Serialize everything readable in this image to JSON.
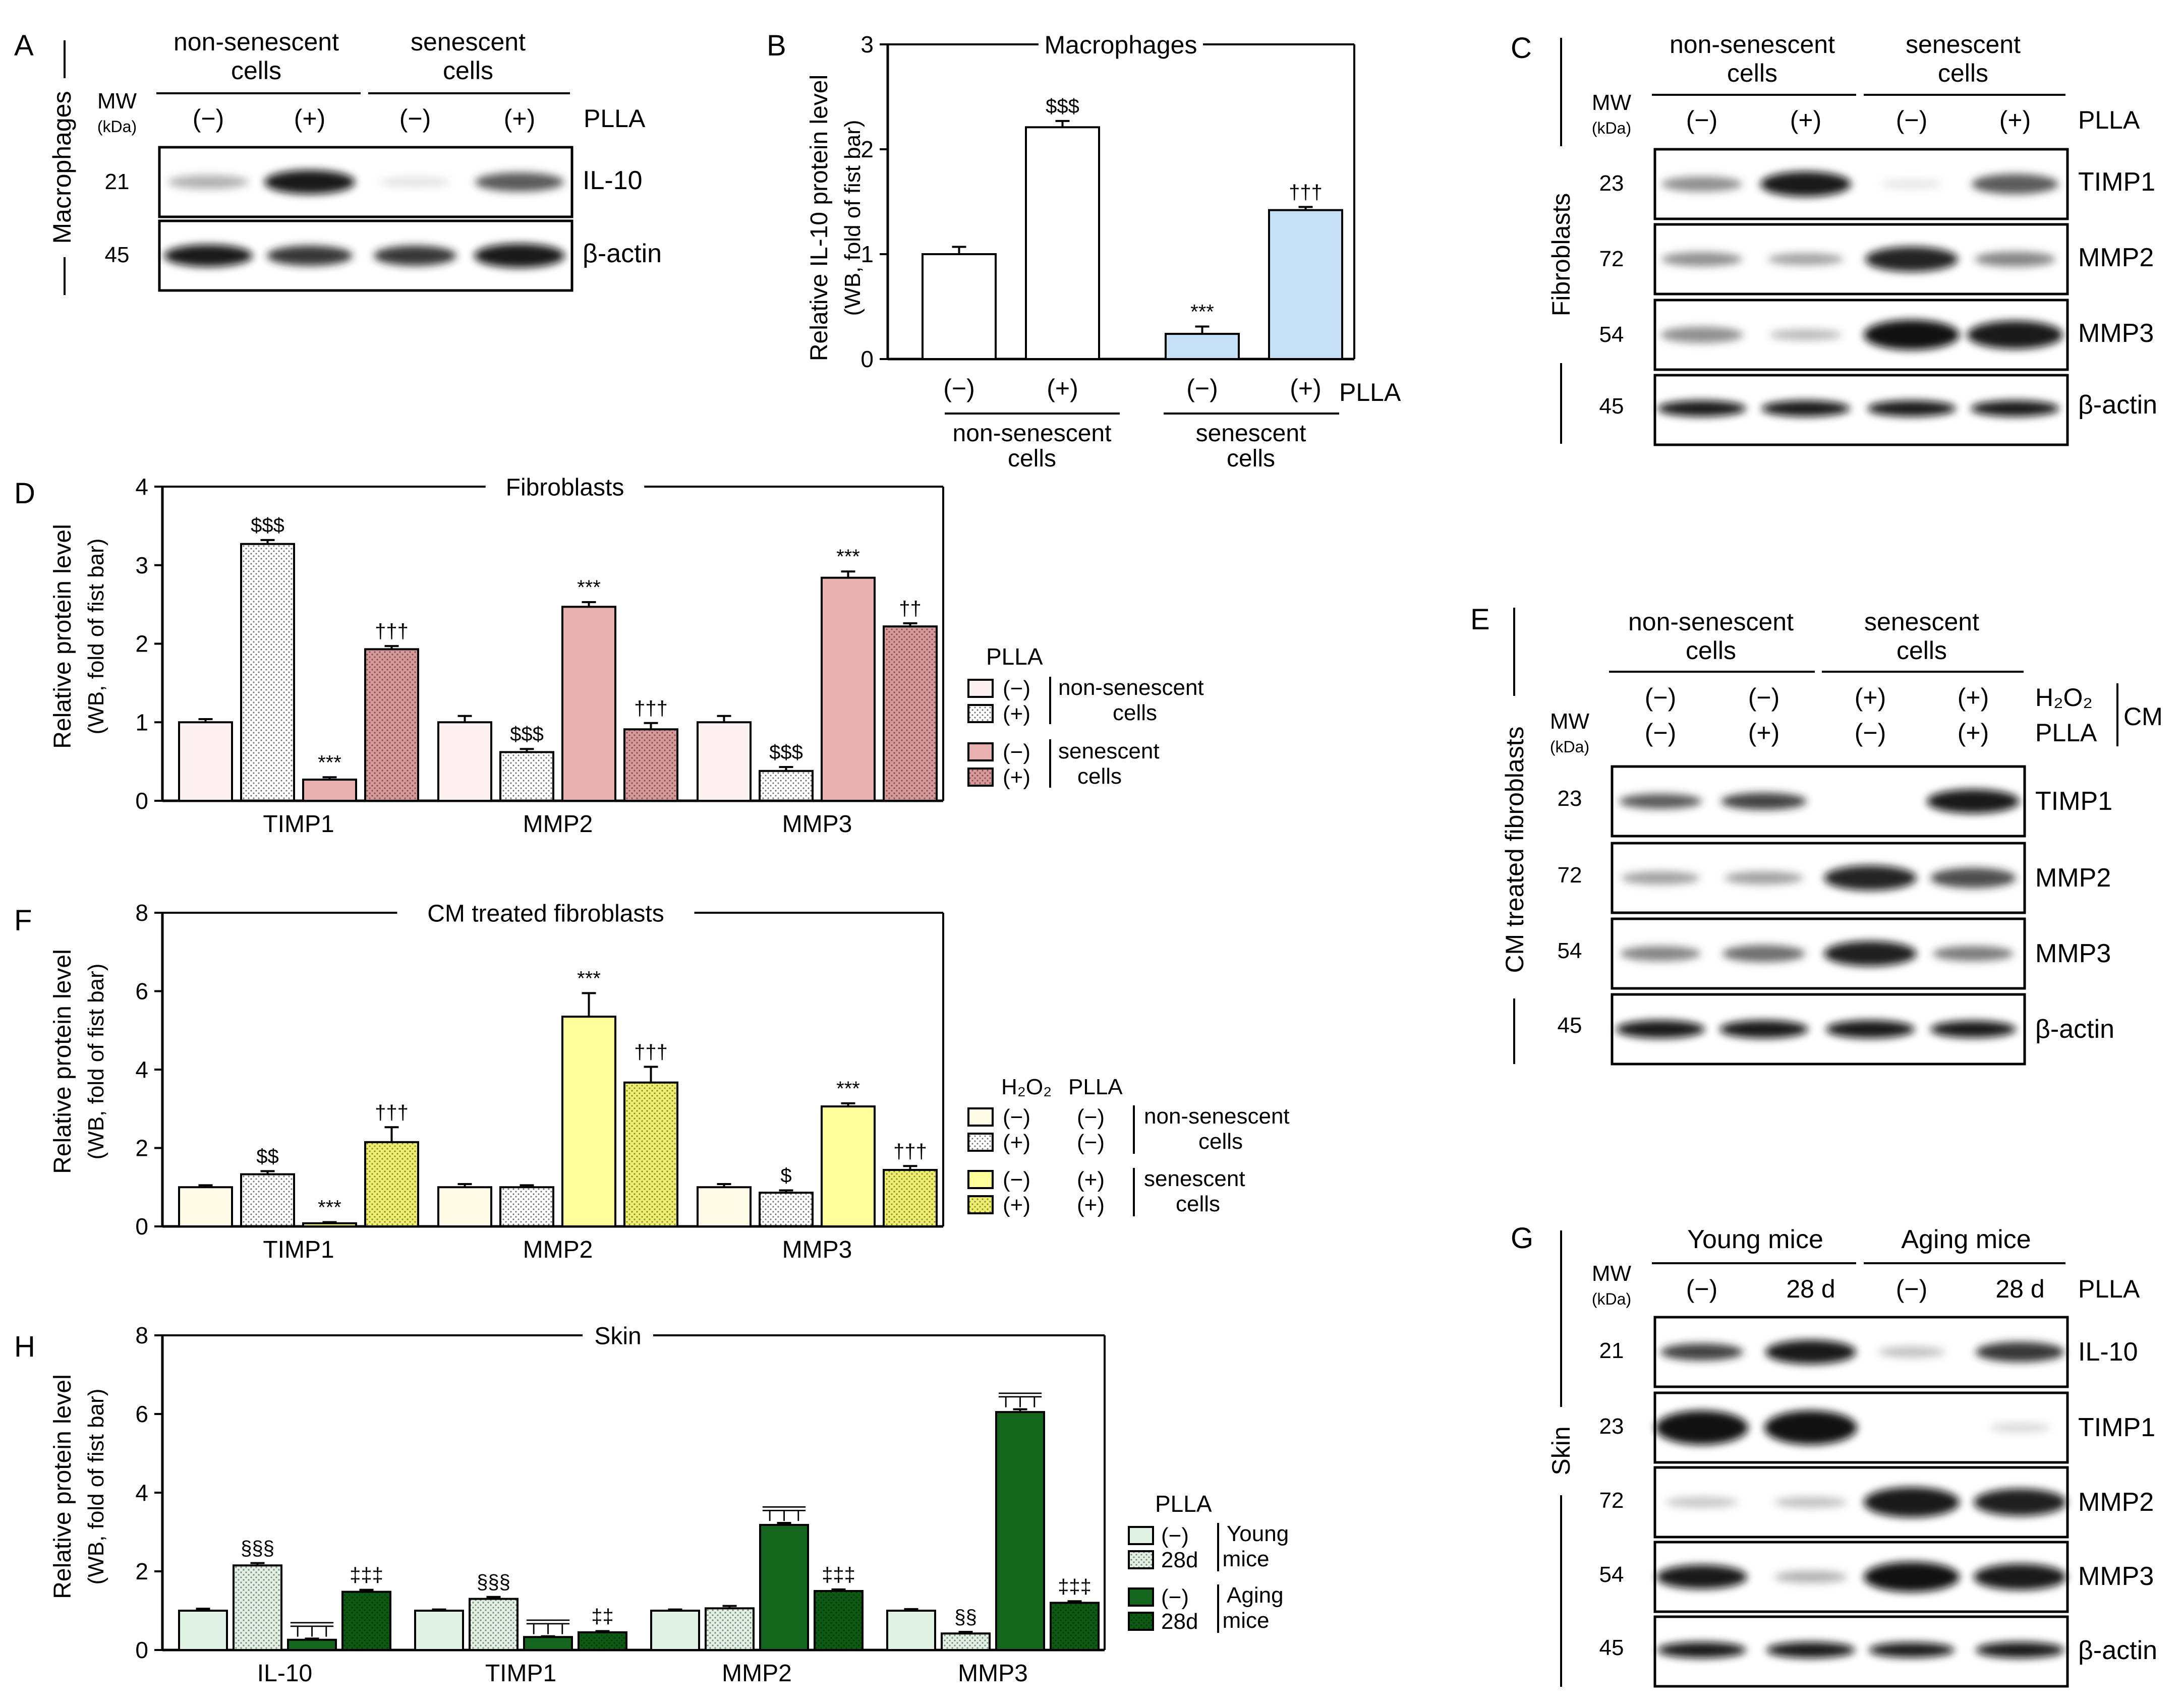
{
  "common": {
    "mw": "MW",
    "kda": "(kDa)",
    "neg": "(−)",
    "pos": "(+)",
    "plla": "PLLA",
    "h2o2": "H₂O₂",
    "cm": "CM",
    "nonsen": "non-senescent",
    "sen": "senescent",
    "cells": "cells",
    "ylabel1": "Relative protein level",
    "ylabel2": "(WB, fold of fist bar)",
    "young": "Young",
    "aging": "Aging",
    "mice": "mice",
    "young_mice": "Young mice",
    "aging_mice": "Aging mice",
    "d28": "28 d"
  },
  "panelA": {
    "letter": "A",
    "side": "Macrophages",
    "bands": [
      {
        "mw": "21",
        "label": "IL-10"
      },
      {
        "mw": "45",
        "label": "β-actin"
      }
    ]
  },
  "panelB": {
    "letter": "B",
    "title": "Macrophages",
    "ylabel1": "Relative IL-10 protein level",
    "ylabel2": "(WB, fold of fist bar)"
  },
  "panelC": {
    "letter": "C",
    "side": "Fibroblasts",
    "bands": [
      {
        "mw": "23",
        "label": "TIMP1"
      },
      {
        "mw": "72",
        "label": "MMP2"
      },
      {
        "mw": "54",
        "label": "MMP3"
      },
      {
        "mw": "45",
        "label": "β-actin"
      }
    ]
  },
  "panelD": {
    "letter": "D",
    "title": "Fibroblasts"
  },
  "panelE": {
    "letter": "E",
    "side": "CM treated fibroblasts",
    "bands": [
      {
        "mw": "23",
        "label": "TIMP1"
      },
      {
        "mw": "72",
        "label": "MMP2"
      },
      {
        "mw": "54",
        "label": "MMP3"
      },
      {
        "mw": "45",
        "label": "β-actin"
      }
    ]
  },
  "panelF": {
    "letter": "F",
    "title": "CM treated fibroblasts"
  },
  "panelG": {
    "letter": "G",
    "side": "Skin",
    "bands": [
      {
        "mw": "21",
        "label": "IL-10"
      },
      {
        "mw": "23",
        "label": "TIMP1"
      },
      {
        "mw": "72",
        "label": "MMP2"
      },
      {
        "mw": "54",
        "label": "MMP3"
      },
      {
        "mw": "45",
        "label": "β-actin"
      }
    ]
  },
  "panelH": {
    "letter": "H",
    "title": "Skin",
    "legend_28d": "28d"
  },
  "chart_data": [
    {
      "id": "B",
      "type": "bar",
      "title": "Macrophages",
      "ylabel": "Relative IL-10 protein level (WB, fold of fist bar)",
      "ylim": [
        0,
        3
      ],
      "yticks": [
        0,
        1,
        2,
        3
      ],
      "categories": [
        "(−)",
        "(+)",
        "(−)",
        "(+)"
      ],
      "groups": [
        "non-senescent cells",
        "senescent cells"
      ],
      "values": [
        1.0,
        2.21,
        0.24,
        1.42
      ],
      "errors": [
        0.07,
        0.06,
        0.07,
        0.03
      ],
      "annotations": [
        "",
        "$$$",
        "***",
        "†††"
      ],
      "colors": [
        "#ffffff",
        "#ffffff",
        "#c5e0f7",
        "#c5e0f7"
      ]
    },
    {
      "id": "D",
      "type": "bar",
      "title": "Fibroblasts",
      "ylabel": "Relative protein level (WB, fold of fist bar)",
      "ylim": [
        0,
        4
      ],
      "yticks": [
        0,
        1,
        2,
        3,
        4
      ],
      "categories": [
        "TIMP1",
        "MMP2",
        "MMP3"
      ],
      "series": [
        {
          "name": "(−) non-senescent cells",
          "values": [
            1.0,
            1.0,
            1.0
          ],
          "errors": [
            0.04,
            0.08,
            0.08
          ],
          "annotations": [
            "",
            "",
            ""
          ]
        },
        {
          "name": "(+) non-senescent cells",
          "values": [
            3.27,
            0.62,
            0.38
          ],
          "errors": [
            0.05,
            0.04,
            0.05
          ],
          "annotations": [
            "$$$",
            "$$$",
            "$$$"
          ]
        },
        {
          "name": "(−) senescent cells",
          "values": [
            0.27,
            2.47,
            2.84
          ],
          "errors": [
            0.03,
            0.06,
            0.08
          ],
          "annotations": [
            "***",
            "***",
            "***"
          ]
        },
        {
          "name": "(+) senescent cells",
          "values": [
            1.93,
            0.91,
            2.22
          ],
          "errors": [
            0.04,
            0.08,
            0.04
          ],
          "annotations": [
            "†††",
            "†††",
            "††"
          ]
        }
      ],
      "legend_title": "PLLA",
      "colors": [
        "#fdf1f1",
        "#ececec",
        "#e8b0b1",
        "#d49a9b"
      ]
    },
    {
      "id": "F",
      "type": "bar",
      "title": "CM treated fibroblasts",
      "ylabel": "Relative protein level (WB, fold of fist bar)",
      "ylim": [
        0,
        8
      ],
      "yticks": [
        0,
        2,
        4,
        6,
        8
      ],
      "categories": [
        "TIMP1",
        "MMP2",
        "MMP3"
      ],
      "series": [
        {
          "name": "H₂O₂ (−) PLLA (−) non-senescent cells",
          "values": [
            1.0,
            1.0,
            1.0
          ],
          "errors": [
            0.05,
            0.08,
            0.08
          ],
          "annotations": [
            "",
            "",
            ""
          ]
        },
        {
          "name": "H₂O₂ (+) PLLA (−) non-senescent cells",
          "values": [
            1.33,
            1.0,
            0.86
          ],
          "errors": [
            0.08,
            0.05,
            0.06
          ],
          "annotations": [
            "$$",
            "",
            "$"
          ]
        },
        {
          "name": "H₂O₂ (−) PLLA (+) senescent cells",
          "values": [
            0.08,
            5.35,
            3.06
          ],
          "errors": [
            0.03,
            0.6,
            0.08
          ],
          "annotations": [
            "***",
            "***",
            "***"
          ]
        },
        {
          "name": "H₂O₂ (+) PLLA (+) senescent cells",
          "values": [
            2.15,
            3.67,
            1.44
          ],
          "errors": [
            0.38,
            0.4,
            0.1
          ],
          "annotations": [
            "†††",
            "†††",
            "†††"
          ]
        }
      ],
      "legend_title": "H₂O₂ PLLA",
      "colors": [
        "#fffbe6",
        "#ececec",
        "#ffff99",
        "#eded70"
      ]
    },
    {
      "id": "H",
      "type": "bar",
      "title": "Skin",
      "ylabel": "Relative protein level (WB, fold of fist bar)",
      "ylim": [
        0,
        8
      ],
      "yticks": [
        0,
        2,
        4,
        6,
        8
      ],
      "categories": [
        "IL-10",
        "TIMP1",
        "MMP2",
        "MMP3"
      ],
      "series": [
        {
          "name": "(−) Young mice",
          "values": [
            1.0,
            1.0,
            1.0,
            1.0
          ],
          "errors": [
            0.05,
            0.03,
            0.03,
            0.04
          ],
          "annotations": [
            "",
            "",
            "",
            ""
          ]
        },
        {
          "name": "28d Young mice",
          "values": [
            2.15,
            1.3,
            1.06,
            0.42
          ],
          "errors": [
            0.06,
            0.05,
            0.06,
            0.04
          ],
          "annotations": [
            "§§§",
            "§§§",
            "",
            "§§"
          ]
        },
        {
          "name": "(−) Aging mice",
          "values": [
            0.26,
            0.33,
            3.18,
            6.05
          ],
          "errors": [
            0.03,
            0.02,
            0.05,
            0.07
          ],
          "annotations": [
            "╤╤╤",
            "╤╤╤",
            "╤╤╤",
            "╤╤╤"
          ]
        },
        {
          "name": "28d Aging mice",
          "values": [
            1.48,
            0.45,
            1.5,
            1.2
          ],
          "errors": [
            0.05,
            0.03,
            0.04,
            0.04
          ],
          "annotations": [
            "‡‡‡",
            "‡‡",
            "‡‡‡",
            "‡‡‡"
          ]
        }
      ],
      "legend_title": "PLLA",
      "colors": [
        "#dff2e3",
        "#e3efe5",
        "#14661e",
        "#0d5914"
      ]
    }
  ]
}
